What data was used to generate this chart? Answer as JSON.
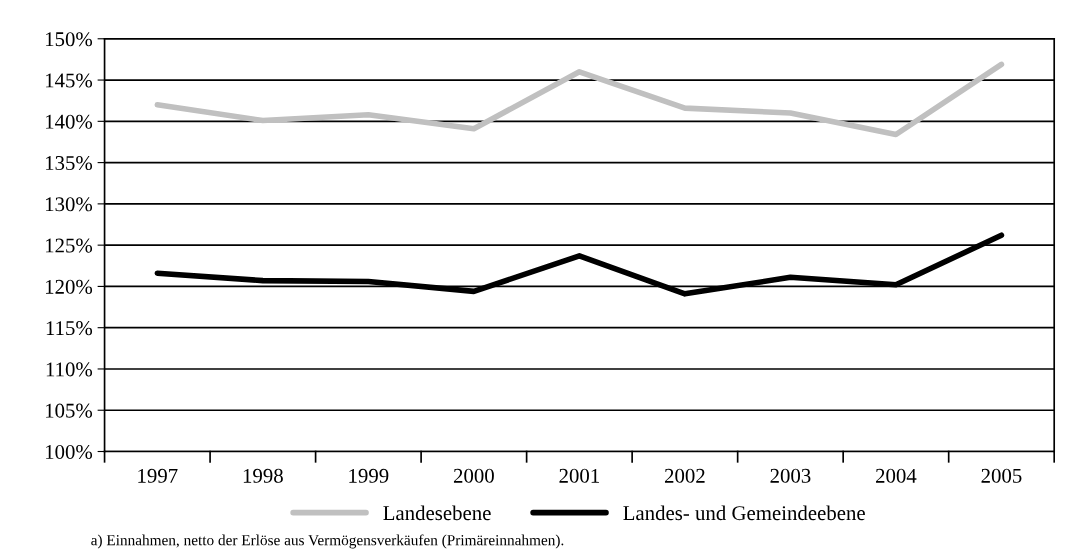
{
  "chart_data": {
    "type": "line",
    "categories": [
      "1997",
      "1998",
      "1999",
      "2000",
      "2001",
      "2002",
      "2003",
      "2004",
      "2005"
    ],
    "series": [
      {
        "name": "Landesebene",
        "color": "#c0c0c0",
        "values": [
          142.0,
          140.1,
          140.8,
          139.1,
          146.0,
          141.6,
          141.0,
          138.4,
          146.9
        ]
      },
      {
        "name": "Landes- und Gemeindeebene",
        "color": "#000000",
        "values": [
          121.6,
          120.7,
          120.6,
          119.4,
          123.7,
          119.1,
          121.1,
          120.2,
          126.2
        ]
      }
    ],
    "ylim": [
      100,
      150
    ],
    "yticks": [
      {
        "value": 100,
        "label": "100%"
      },
      {
        "value": 105,
        "label": "105%"
      },
      {
        "value": 110,
        "label": "110%"
      },
      {
        "value": 115,
        "label": "115%"
      },
      {
        "value": 120,
        "label": "120%"
      },
      {
        "value": 125,
        "label": "125%"
      },
      {
        "value": 130,
        "label": "130%"
      },
      {
        "value": 135,
        "label": "135%"
      },
      {
        "value": 140,
        "label": "140%"
      },
      {
        "value": 145,
        "label": "145%"
      },
      {
        "value": 150,
        "label": "150%"
      }
    ],
    "grid": "y",
    "legend": "bottom",
    "marker": "none",
    "line_style": "solid",
    "annotations": [
      "a) Einnahmen, netto der Erlöse aus Vermögensverkäufen (Primäreinnahmen)."
    ]
  }
}
